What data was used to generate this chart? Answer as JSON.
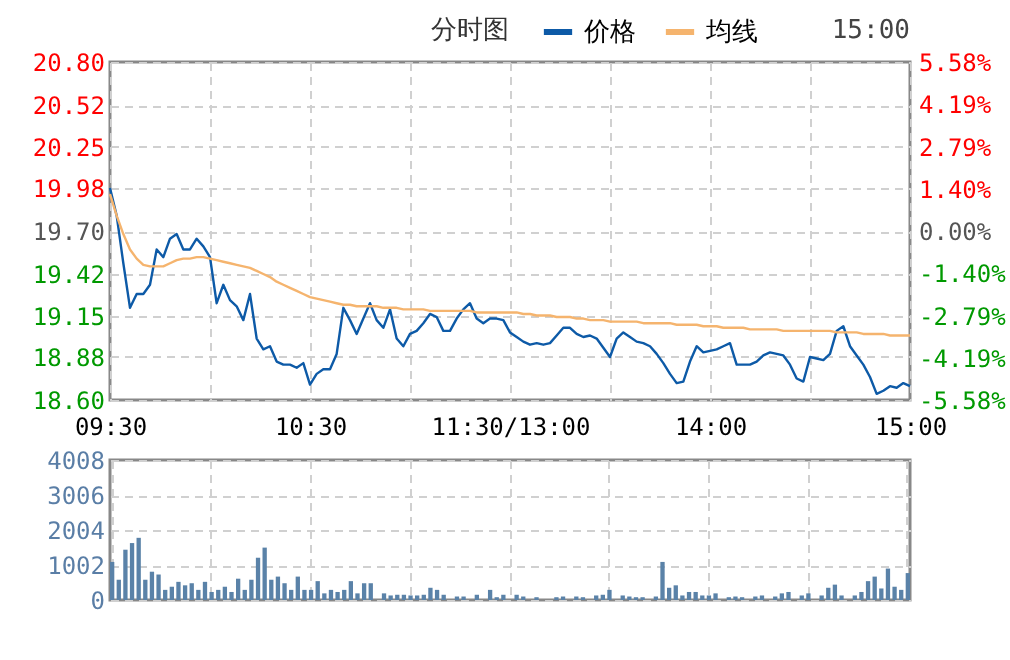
{
  "chart_data": [
    {
      "type": "line",
      "title": "分时图",
      "annotations": [
        "15:00"
      ],
      "legend": "top",
      "grid": true,
      "categories": [
        "09:30",
        null,
        null,
        null,
        null,
        null,
        null,
        null,
        null,
        null,
        null,
        null,
        null,
        null,
        null,
        null,
        null,
        null,
        null,
        null,
        null,
        null,
        null,
        null,
        null,
        null,
        null,
        null,
        null,
        null,
        "10:30",
        null,
        null,
        null,
        null,
        null,
        null,
        null,
        null,
        null,
        null,
        null,
        null,
        null,
        null,
        null,
        null,
        null,
        null,
        null,
        null,
        null,
        null,
        null,
        null,
        null,
        null,
        null,
        null,
        null,
        "11:30/13:00",
        null,
        null,
        null,
        null,
        null,
        null,
        null,
        null,
        null,
        null,
        null,
        null,
        null,
        null,
        null,
        null,
        null,
        null,
        null,
        null,
        null,
        null,
        null,
        null,
        null,
        null,
        null,
        null,
        null,
        "14:00",
        null,
        null,
        null,
        null,
        null,
        null,
        null,
        null,
        null,
        null,
        null,
        null,
        null,
        null,
        null,
        null,
        null,
        null,
        null,
        null,
        null,
        null,
        null,
        null,
        null,
        null,
        null,
        null,
        null,
        "15:00"
      ],
      "ylim": [
        18.6,
        20.8
      ],
      "yticks": [
        {
          "value": 18.6,
          "label": "18.60"
        },
        18.88,
        19.15,
        19.42,
        {
          "value": 19.7,
          "label": "19.70"
        },
        19.98,
        20.25,
        20.52,
        {
          "value": 20.8,
          "label": "20.80"
        }
      ],
      "y2lim": [
        -5.58,
        5.58
      ],
      "y2ticks": [
        {
          "value": -5.58,
          "label": "-5.58%"
        },
        {
          "value": -4.19,
          "label": "-4.19%"
        },
        {
          "value": -2.79,
          "label": "-2.79%"
        },
        {
          "value": -1.4,
          "label": "-1.40%"
        },
        {
          "value": 0,
          "label": "0.00%"
        },
        {
          "value": 1.4,
          "label": "1.40%"
        },
        {
          "value": 2.79,
          "label": "2.79%"
        },
        {
          "value": 4.19,
          "label": "4.19%"
        },
        {
          "value": 5.58,
          "label": "5.58%"
        }
      ],
      "series": [
        {
          "name": "价格",
          "color": "#0d5aa7",
          "values": [
            19.98,
            19.8,
            19.49,
            19.2,
            19.29,
            19.29,
            19.35,
            19.58,
            19.53,
            19.65,
            19.68,
            19.58,
            19.58,
            19.65,
            19.6,
            19.53,
            19.23,
            19.35,
            19.25,
            19.21,
            19.12,
            19.29,
            19.0,
            18.93,
            18.95,
            18.85,
            18.83,
            18.83,
            18.81,
            18.84,
            18.7,
            18.77,
            18.8,
            18.8,
            18.9,
            19.2,
            19.12,
            19.03,
            19.13,
            19.23,
            19.12,
            19.07,
            19.19,
            19.0,
            18.95,
            19.03,
            19.05,
            19.1,
            19.16,
            19.14,
            19.05,
            19.05,
            19.13,
            19.19,
            19.23,
            19.13,
            19.1,
            19.13,
            19.13,
            19.12,
            19.04,
            19.01,
            18.98,
            18.96,
            18.97,
            18.96,
            18.97,
            19.02,
            19.07,
            19.07,
            19.03,
            19.01,
            19.02,
            19.0,
            18.94,
            18.88,
            19.0,
            19.04,
            19.01,
            18.98,
            18.97,
            18.95,
            18.9,
            18.84,
            18.77,
            18.71,
            18.72,
            18.85,
            18.95,
            18.91,
            18.92,
            18.93,
            18.95,
            18.97,
            18.83,
            18.83,
            18.83,
            18.85,
            18.89,
            18.91,
            18.9,
            18.89,
            18.83,
            18.74,
            18.72,
            18.88,
            18.87,
            18.86,
            18.9,
            19.05,
            19.08,
            18.95,
            18.89,
            18.83,
            18.75,
            18.64,
            18.66,
            18.69,
            18.68,
            18.71,
            18.69
          ]
        },
        {
          "name": "均线",
          "color": "#f5b46e",
          "values": [
            19.94,
            19.8,
            19.68,
            19.58,
            19.52,
            19.48,
            19.47,
            19.47,
            19.47,
            19.49,
            19.51,
            19.52,
            19.52,
            19.53,
            19.53,
            19.52,
            19.51,
            19.5,
            19.49,
            19.48,
            19.47,
            19.46,
            19.44,
            19.42,
            19.4,
            19.37,
            19.35,
            19.33,
            19.31,
            19.29,
            19.27,
            19.26,
            19.25,
            19.24,
            19.23,
            19.22,
            19.22,
            19.21,
            19.21,
            19.21,
            19.21,
            19.2,
            19.2,
            19.2,
            19.19,
            19.19,
            19.19,
            19.19,
            19.18,
            19.18,
            19.18,
            19.18,
            19.18,
            19.18,
            19.18,
            19.17,
            19.17,
            19.17,
            19.17,
            19.17,
            19.17,
            19.17,
            19.16,
            19.16,
            19.15,
            19.15,
            19.15,
            19.14,
            19.14,
            19.14,
            19.13,
            19.13,
            19.12,
            19.12,
            19.12,
            19.11,
            19.11,
            19.11,
            19.11,
            19.11,
            19.1,
            19.1,
            19.1,
            19.1,
            19.1,
            19.09,
            19.09,
            19.09,
            19.09,
            19.08,
            19.08,
            19.08,
            19.07,
            19.07,
            19.07,
            19.07,
            19.06,
            19.06,
            19.06,
            19.06,
            19.06,
            19.05,
            19.05,
            19.05,
            19.05,
            19.05,
            19.05,
            19.05,
            19.05,
            19.04,
            19.04,
            19.04,
            19.04,
            19.03,
            19.03,
            19.03,
            19.03,
            19.02,
            19.02,
            19.02,
            19.02
          ]
        }
      ]
    },
    {
      "type": "bar",
      "grid": true,
      "tick_labels": "y",
      "color": "#5a82a8",
      "categories": [
        null,
        null,
        null,
        null,
        null,
        null,
        null,
        null,
        null,
        null,
        null,
        null,
        null,
        null,
        null,
        null,
        null,
        null,
        null,
        null,
        null,
        null,
        null,
        null,
        null,
        null,
        null,
        null,
        null,
        null,
        null,
        null,
        null,
        null,
        null,
        null,
        null,
        null,
        null,
        null,
        null,
        null,
        null,
        null,
        null,
        null,
        null,
        null,
        null,
        null,
        null,
        null,
        null,
        null,
        null,
        null,
        null,
        null,
        null,
        null,
        null,
        null,
        null,
        null,
        null,
        null,
        null,
        null,
        null,
        null,
        null,
        null,
        null,
        null,
        null,
        null,
        null,
        null,
        null,
        null,
        null,
        null,
        null,
        null,
        null,
        null,
        null,
        null,
        null,
        null,
        null,
        null,
        null,
        null,
        null,
        null,
        null,
        null,
        null,
        null,
        null,
        null,
        null,
        null,
        null,
        null,
        null,
        null,
        null,
        null,
        null,
        null,
        null,
        null,
        null,
        null,
        null,
        null,
        null,
        null,
        null
      ],
      "ylim": [
        0,
        4008
      ],
      "yticks": [
        0,
        1002,
        2004,
        3006,
        4008
      ],
      "values": [
        1090,
        580,
        1440,
        1630,
        1780,
        580,
        810,
        730,
        290,
        380,
        520,
        420,
        480,
        290,
        520,
        230,
        290,
        380,
        230,
        610,
        290,
        580,
        1210,
        1500,
        580,
        670,
        480,
        290,
        670,
        290,
        290,
        540,
        190,
        290,
        230,
        290,
        540,
        190,
        480,
        480,
        null,
        190,
        130,
        150,
        150,
        130,
        130,
        150,
        350,
        290,
        150,
        null,
        100,
        100,
        null,
        150,
        null,
        290,
        80,
        150,
        null,
        150,
        100,
        null,
        80,
        null,
        null,
        80,
        100,
        null,
        100,
        80,
        null,
        130,
        150,
        290,
        null,
        130,
        100,
        80,
        80,
        null,
        100,
        1090,
        350,
        420,
        130,
        230,
        230,
        130,
        130,
        190,
        null,
        80,
        100,
        80,
        null,
        100,
        130,
        null,
        100,
        190,
        230,
        null,
        130,
        190,
        null,
        130,
        350,
        440,
        130,
        null,
        130,
        230,
        540,
        670,
        330,
        900,
        380,
        290,
        770
      ]
    }
  ]
}
